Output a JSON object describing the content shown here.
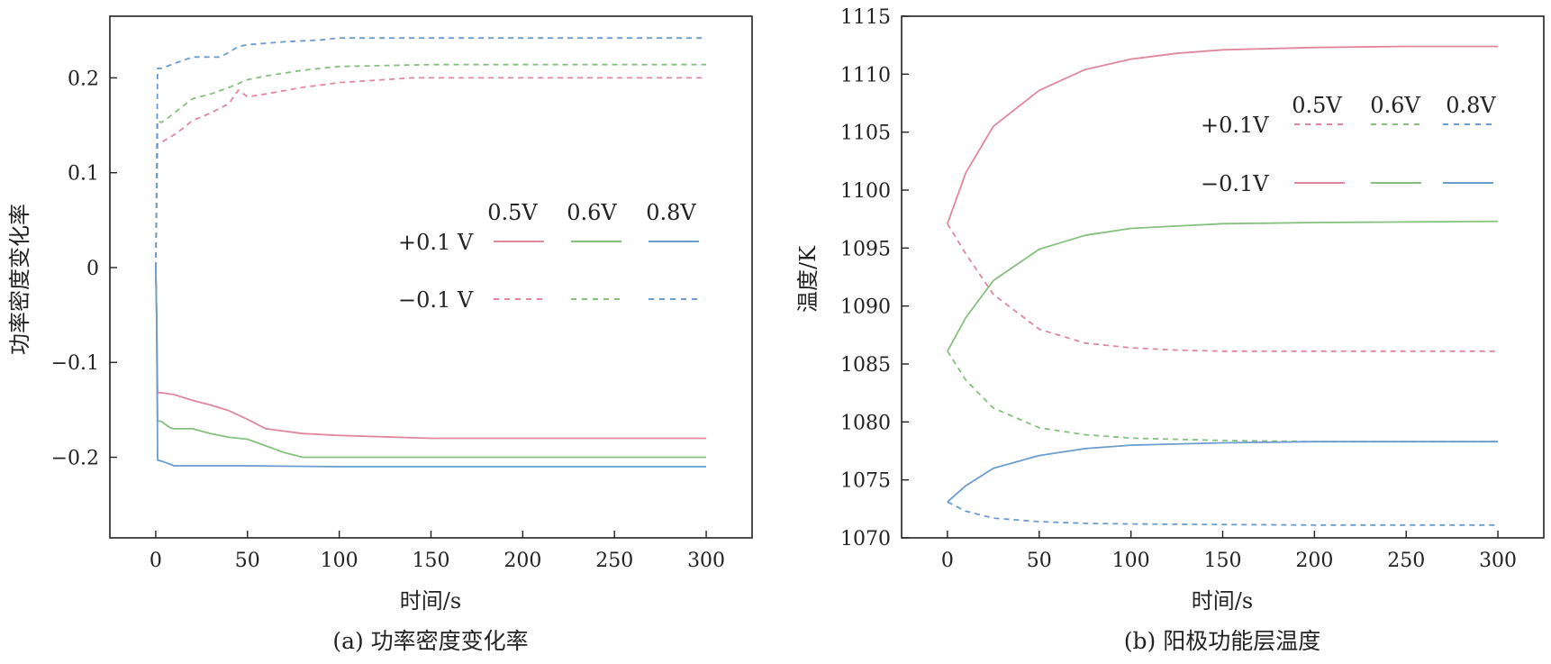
{
  "chart_data": [
    {
      "type": "line",
      "panel_caption": "(a) 功率密度变化率",
      "xlabel": "时间/s",
      "ylabel": "功率密度变化率",
      "xlim": [
        -25,
        325
      ],
      "ylim": [
        -0.285,
        0.265
      ],
      "xticks": [
        0,
        50,
        100,
        150,
        200,
        250,
        300
      ],
      "xtick_labels": [
        "0",
        "50",
        "100",
        "150",
        "200",
        "250",
        "300"
      ],
      "yticks": [
        -0.2,
        -0.1,
        0,
        0.1,
        0.2
      ],
      "ytick_labels": [
        "−0.2",
        "−0.1",
        "0",
        "0.1",
        "0.2"
      ],
      "legend": {
        "placement": "center-right",
        "columns": [
          "0.5V",
          "0.6V",
          "0.8V"
        ],
        "rows": [
          "+0.1 V",
          "−0.1 V"
        ]
      },
      "series": [
        {
          "name": "+0.1 V 0.5V",
          "color": "#e0879b",
          "style": "solid",
          "x": [
            0,
            0.5,
            1,
            3,
            10,
            20,
            30,
            40,
            50,
            60,
            80,
            100,
            150,
            200,
            300
          ],
          "y": [
            0,
            -0.05,
            -0.132,
            -0.132,
            -0.134,
            -0.14,
            -0.145,
            -0.151,
            -0.16,
            -0.17,
            -0.175,
            -0.177,
            -0.18,
            -0.18,
            -0.18
          ]
        },
        {
          "name": "+0.1 V 0.6V",
          "color": "#86c07f",
          "style": "solid",
          "x": [
            0,
            0.5,
            1,
            3,
            5,
            8,
            10,
            20,
            30,
            40,
            50,
            60,
            70,
            80,
            100,
            150,
            200,
            300
          ],
          "y": [
            0,
            -0.05,
            -0.162,
            -0.162,
            -0.165,
            -0.169,
            -0.17,
            -0.17,
            -0.175,
            -0.179,
            -0.181,
            -0.188,
            -0.195,
            -0.2,
            -0.2,
            -0.2,
            -0.2,
            -0.2
          ]
        },
        {
          "name": "+0.1 V 0.8V",
          "color": "#6a9ccf",
          "style": "solid",
          "x": [
            0,
            0.5,
            1,
            3,
            6,
            10,
            20,
            50,
            100,
            150,
            200,
            300
          ],
          "y": [
            0,
            -0.05,
            -0.203,
            -0.204,
            -0.206,
            -0.209,
            -0.209,
            -0.209,
            -0.21,
            -0.21,
            -0.21,
            -0.21
          ]
        },
        {
          "name": "−0.1 V 0.5V",
          "color": "#e0879b",
          "style": "dashed",
          "x": [
            0,
            1,
            3,
            10,
            15,
            20,
            30,
            40,
            45,
            50,
            60,
            80,
            100,
            140,
            150,
            200,
            300
          ],
          "y": [
            0,
            0.13,
            0.132,
            0.14,
            0.147,
            0.155,
            0.163,
            0.173,
            0.187,
            0.18,
            0.183,
            0.19,
            0.195,
            0.2,
            0.2,
            0.2,
            0.2
          ]
        },
        {
          "name": "−0.1 V 0.6V",
          "color": "#86c07f",
          "style": "dashed",
          "x": [
            0,
            1,
            3,
            5,
            10,
            20,
            30,
            40,
            50,
            60,
            80,
            100,
            150,
            200,
            300
          ],
          "y": [
            0,
            0.155,
            0.153,
            0.155,
            0.163,
            0.178,
            0.183,
            0.19,
            0.198,
            0.202,
            0.208,
            0.212,
            0.214,
            0.214,
            0.214
          ]
        },
        {
          "name": "−0.1 V 0.8V",
          "color": "#6a9ccf",
          "style": "dashed",
          "x": [
            0,
            1,
            3,
            10,
            20,
            35,
            40,
            45,
            50,
            70,
            90,
            100,
            150,
            200,
            300
          ],
          "y": [
            0,
            0.21,
            0.21,
            0.215,
            0.222,
            0.222,
            0.227,
            0.233,
            0.235,
            0.238,
            0.24,
            0.242,
            0.242,
            0.242,
            0.242
          ]
        }
      ]
    },
    {
      "type": "line",
      "panel_caption": "(b) 阳极功能层温度",
      "xlabel": "时间/s",
      "ylabel": "温度/K",
      "xlim": [
        -25,
        325
      ],
      "ylim": [
        1070,
        1115
      ],
      "xticks": [
        0,
        50,
        100,
        150,
        200,
        250,
        300
      ],
      "xtick_labels": [
        "0",
        "50",
        "100",
        "150",
        "200",
        "250",
        "300"
      ],
      "yticks": [
        1070,
        1075,
        1080,
        1085,
        1090,
        1095,
        1100,
        1105,
        1110,
        1115
      ],
      "ytick_labels": [
        "1070",
        "1075",
        "1080",
        "1085",
        "1090",
        "1095",
        "1100",
        "1105",
        "1110",
        "1115"
      ],
      "legend": {
        "placement": "top-right",
        "columns": [
          "0.5V",
          "0.6V",
          "0.8V"
        ],
        "rows": [
          "+0.1V",
          "−0.1V"
        ]
      },
      "series": [
        {
          "name": "+0.1V 0.5V",
          "color": "#e0879b",
          "style": "dashed",
          "x": [
            0,
            10,
            25,
            50,
            75,
            100,
            125,
            150,
            200,
            300
          ],
          "y": [
            1097.1,
            1094.5,
            1091.0,
            1088.0,
            1086.8,
            1086.4,
            1086.2,
            1086.1,
            1086.1,
            1086.1
          ]
        },
        {
          "name": "+0.1V 0.6V",
          "color": "#86c07f",
          "style": "dashed",
          "x": [
            0,
            10,
            25,
            50,
            75,
            100,
            150,
            200,
            300
          ],
          "y": [
            1086.1,
            1083.6,
            1081.2,
            1079.5,
            1078.9,
            1078.6,
            1078.4,
            1078.3,
            1078.3
          ]
        },
        {
          "name": "+0.1V 0.8V",
          "color": "#6a9ccf",
          "style": "dashed",
          "x": [
            0,
            10,
            25,
            50,
            75,
            100,
            150,
            200,
            300
          ],
          "y": [
            1073.1,
            1072.3,
            1071.7,
            1071.4,
            1071.25,
            1071.2,
            1071.15,
            1071.1,
            1071.1
          ]
        },
        {
          "name": "−0.1V 0.5V",
          "color": "#e0879b",
          "style": "solid",
          "x": [
            0,
            10,
            25,
            50,
            75,
            100,
            125,
            150,
            200,
            250,
            300
          ],
          "y": [
            1097.1,
            1101.5,
            1105.5,
            1108.6,
            1110.4,
            1111.3,
            1111.8,
            1112.1,
            1112.3,
            1112.4,
            1112.4
          ]
        },
        {
          "name": "−0.1V 0.6V",
          "color": "#86c07f",
          "style": "solid",
          "x": [
            0,
            10,
            25,
            50,
            75,
            100,
            150,
            200,
            300
          ],
          "y": [
            1086.1,
            1089.0,
            1092.2,
            1094.9,
            1096.1,
            1096.7,
            1097.1,
            1097.2,
            1097.3
          ]
        },
        {
          "name": "−0.1V 0.8V",
          "color": "#6a9ccf",
          "style": "solid",
          "x": [
            0,
            10,
            25,
            50,
            75,
            100,
            150,
            200,
            300
          ],
          "y": [
            1073.1,
            1074.5,
            1076.0,
            1077.1,
            1077.7,
            1078.0,
            1078.2,
            1078.3,
            1078.3
          ]
        }
      ]
    }
  ]
}
